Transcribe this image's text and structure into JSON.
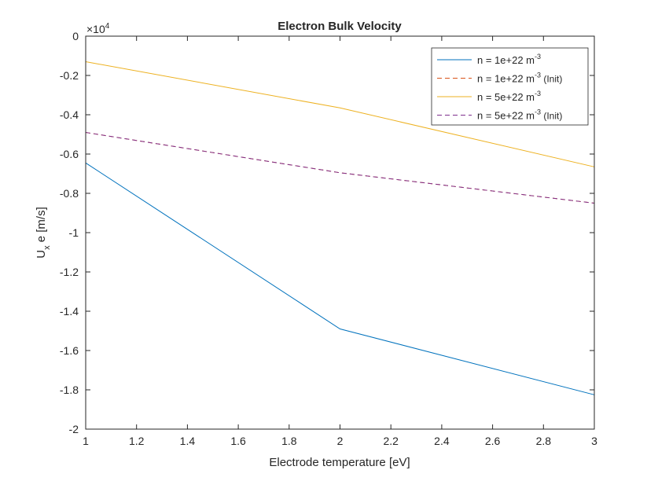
{
  "chart_data": {
    "type": "line",
    "title": "Electron Bulk Velocity",
    "xlabel": "Electrode temperature [eV]",
    "ylabel": {
      "main": "U",
      "sub": "x",
      "rest": "e [m/s]"
    },
    "exponent": {
      "base": "×10",
      "power": "4"
    },
    "xlim": [
      1,
      3
    ],
    "ylim": [
      -2,
      0
    ],
    "xticks": [
      "1",
      "1.2",
      "1.4",
      "1.6",
      "1.8",
      "2",
      "2.2",
      "2.4",
      "2.6",
      "2.8",
      "3"
    ],
    "yticks": [
      "0",
      "-0.2",
      "-0.4",
      "-0.6",
      "-0.8",
      "-1",
      "-1.2",
      "-1.4",
      "-1.6",
      "-1.8",
      "-2"
    ],
    "x": [
      1,
      2,
      3
    ],
    "series": [
      {
        "name": "n = 1e+22 m",
        "sup": "-3",
        "suffix": "",
        "color": "#0072BD",
        "dash": "solid",
        "values": [
          -0.645,
          -1.49,
          -1.825
        ]
      },
      {
        "name": "n = 1e+22 m",
        "sup": "-3",
        "suffix": " (Init)",
        "color": "#D95319",
        "dash": "dashed",
        "values": [
          -0.49,
          -0.695,
          -0.85
        ]
      },
      {
        "name": "n = 5e+22 m",
        "sup": "-3",
        "suffix": "",
        "color": "#EDB120",
        "dash": "solid",
        "values": [
          -0.13,
          -0.365,
          -0.665
        ]
      },
      {
        "name": "n = 5e+22 m",
        "sup": "-3",
        "suffix": " (Init)",
        "color": "#7E2F8E",
        "dash": "dashed",
        "values": [
          -0.49,
          -0.695,
          -0.85
        ]
      }
    ],
    "legend_position": "top-right",
    "grid": false
  }
}
